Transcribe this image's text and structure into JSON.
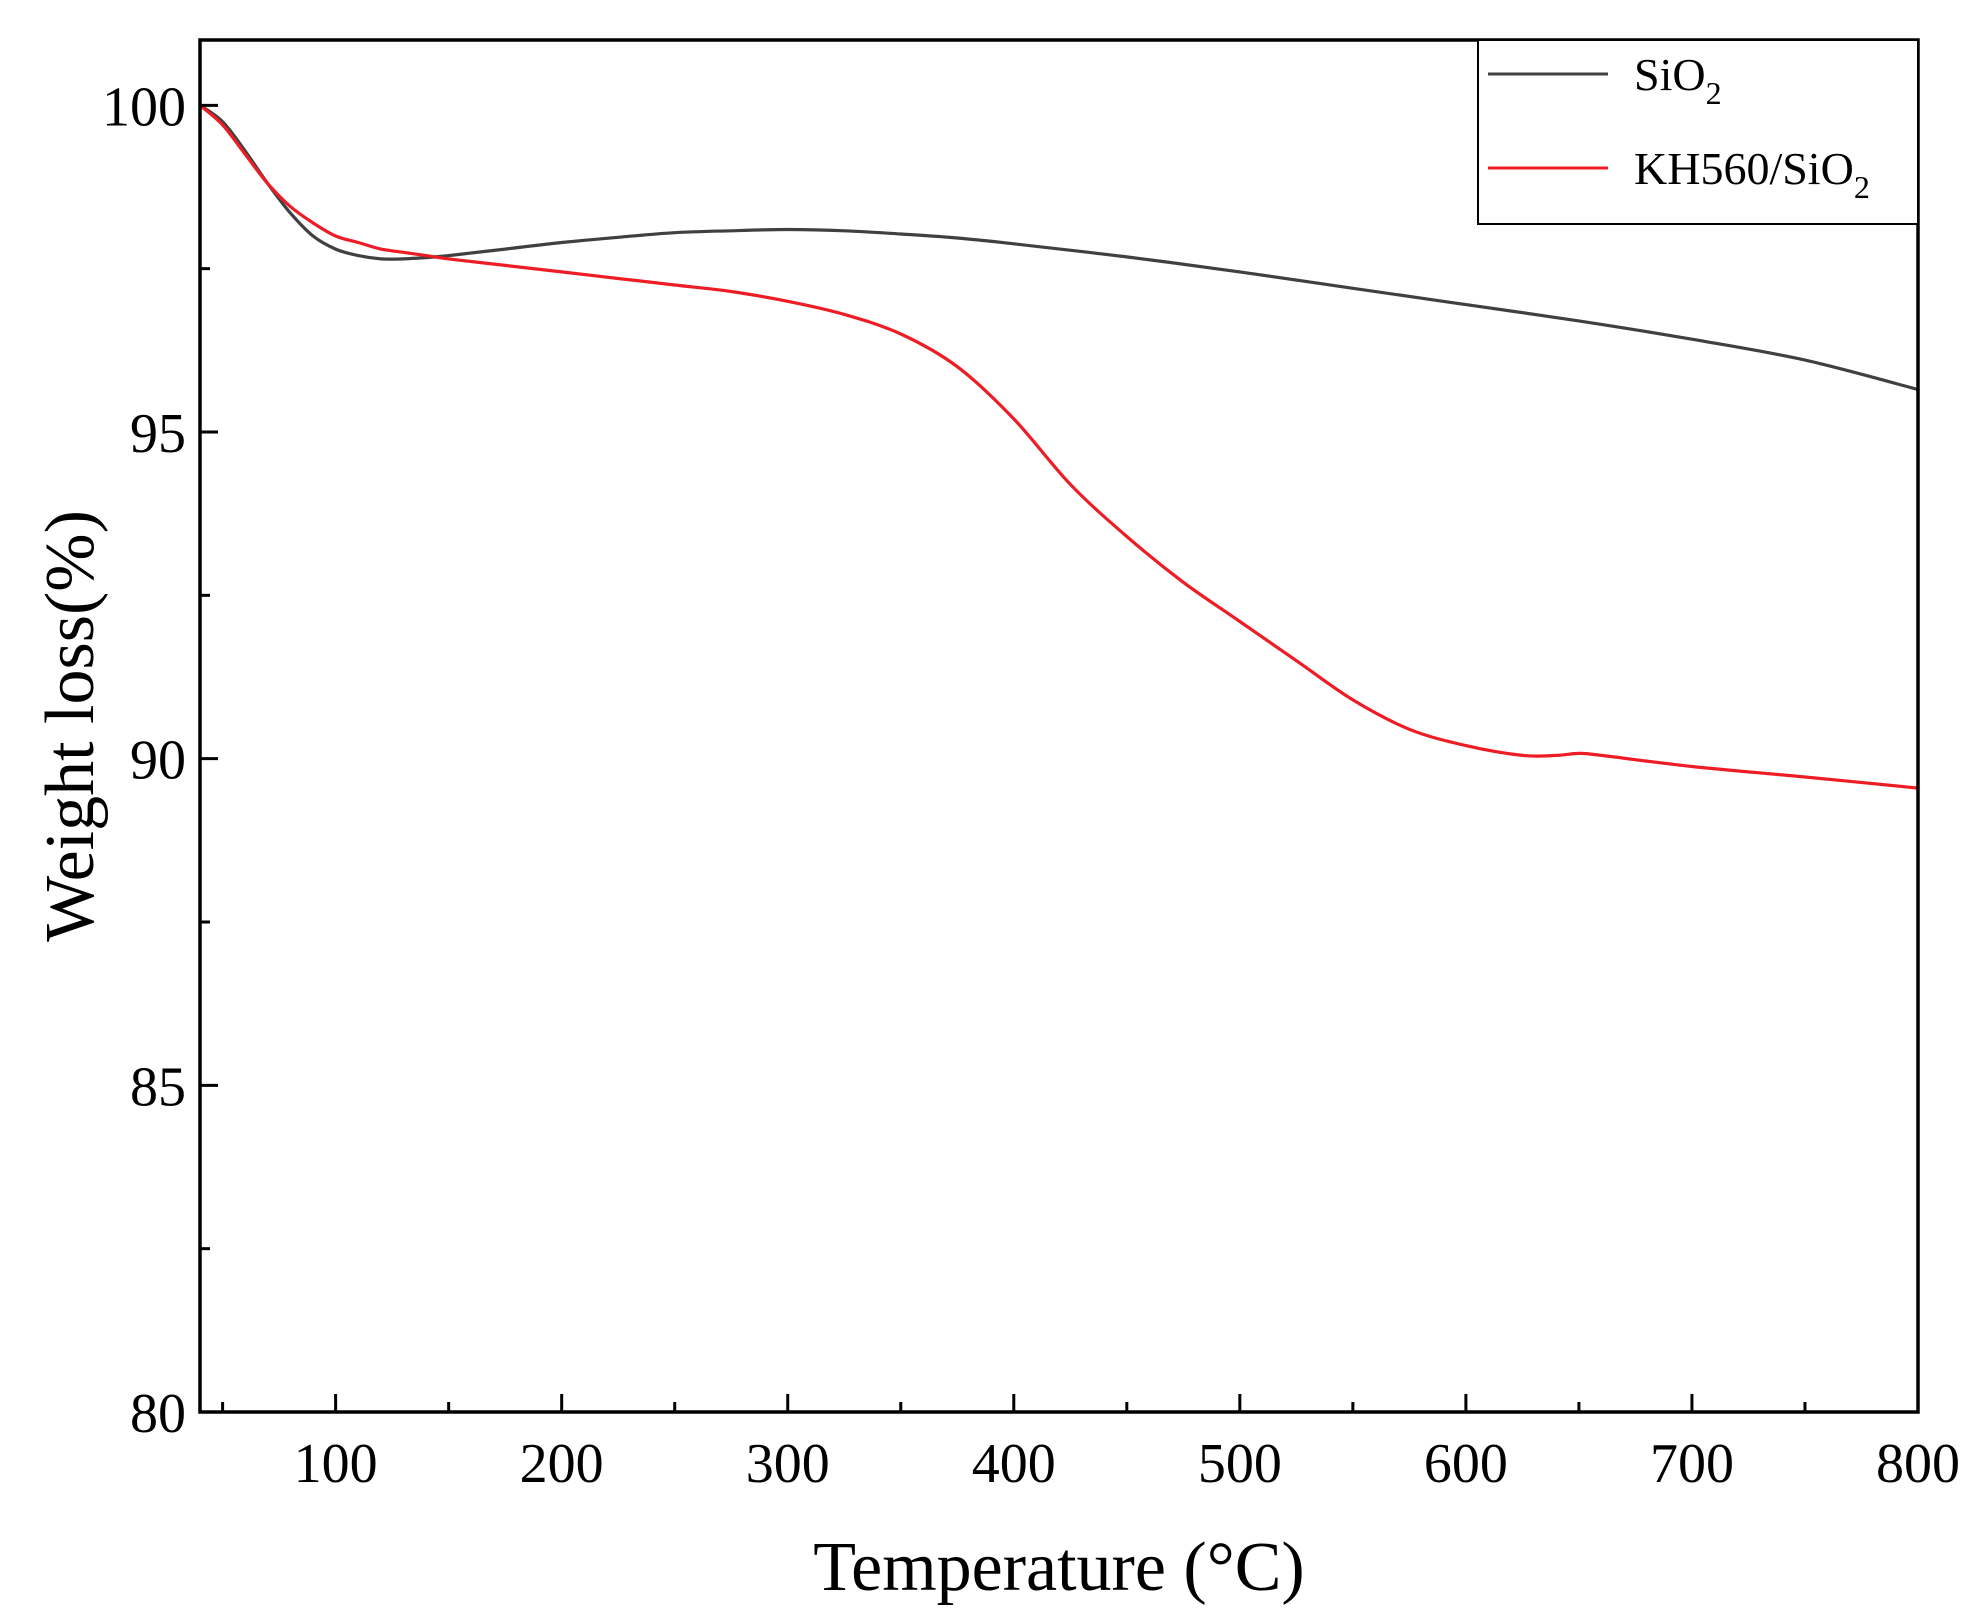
{
  "chart_data": {
    "type": "line",
    "title": "",
    "xlabel": "Temperature (°C)",
    "ylabel": "Weight loss(%)",
    "xlim": [
      40,
      800
    ],
    "ylim": [
      80,
      101
    ],
    "x_major_ticks": [
      100,
      200,
      300,
      400,
      500,
      600,
      700,
      800
    ],
    "x_minor_ticks": [
      50,
      150,
      250,
      350,
      450,
      550,
      650,
      750
    ],
    "y_major_ticks": [
      80,
      85,
      90,
      95,
      100
    ],
    "y_minor_ticks": [
      82.5,
      87.5,
      92.5,
      97.5
    ],
    "legend_position": "top-right",
    "series": [
      {
        "name": "SiO2",
        "legend_main": "SiO",
        "legend_sub": "2",
        "color": "#404040",
        "x": [
          40,
          50,
          60,
          70,
          80,
          90,
          100,
          110,
          120,
          130,
          140,
          150,
          175,
          200,
          225,
          250,
          275,
          300,
          325,
          350,
          375,
          400,
          450,
          500,
          550,
          600,
          650,
          700,
          750,
          800
        ],
        "y": [
          100.0,
          99.75,
          99.3,
          98.8,
          98.35,
          98.0,
          97.8,
          97.7,
          97.65,
          97.65,
          97.67,
          97.7,
          97.8,
          97.9,
          97.98,
          98.05,
          98.08,
          98.1,
          98.08,
          98.03,
          97.97,
          97.88,
          97.68,
          97.45,
          97.2,
          96.95,
          96.7,
          96.42,
          96.1,
          95.65
        ]
      },
      {
        "name": "KH560/SiO2",
        "legend_main": "KH560/SiO",
        "legend_sub": "2",
        "color": "#ee1c25",
        "x": [
          40,
          50,
          60,
          70,
          80,
          90,
          100,
          110,
          120,
          130,
          140,
          150,
          175,
          200,
          225,
          250,
          275,
          300,
          325,
          350,
          375,
          400,
          425,
          450,
          475,
          500,
          525,
          550,
          575,
          600,
          625,
          640,
          650,
          660,
          700,
          750,
          800
        ],
        "y": [
          100.0,
          99.7,
          99.25,
          98.8,
          98.45,
          98.2,
          98.0,
          97.9,
          97.8,
          97.75,
          97.7,
          97.65,
          97.55,
          97.45,
          97.35,
          97.25,
          97.15,
          97.0,
          96.8,
          96.5,
          96.0,
          95.2,
          94.2,
          93.4,
          92.7,
          92.1,
          91.5,
          90.9,
          90.45,
          90.2,
          90.05,
          90.05,
          90.08,
          90.05,
          89.88,
          89.72,
          89.55
        ]
      }
    ]
  }
}
